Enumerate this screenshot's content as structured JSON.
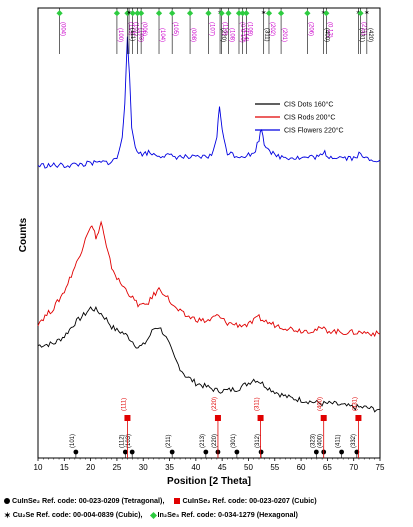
{
  "chart_data": {
    "type": "line",
    "xlabel": "Position [2 Theta]",
    "ylabel": "Counts",
    "xlim": [
      10,
      75
    ],
    "xticks": [
      "10",
      "15",
      "20",
      "25",
      "30",
      "35",
      "40",
      "45",
      "50",
      "55",
      "60",
      "65",
      "70",
      "75"
    ],
    "grid": false,
    "legend_position": "right",
    "series": [
      {
        "name": "CIS Dots 160°C",
        "color": "#000000",
        "points": [
          [
            10,
            0.6
          ],
          [
            13,
            0.61
          ],
          [
            15,
            0.65
          ],
          [
            17,
            0.72
          ],
          [
            19,
            0.77
          ],
          [
            20,
            0.8
          ],
          [
            21,
            0.79
          ],
          [
            22,
            0.77
          ],
          [
            23,
            0.74
          ],
          [
            24,
            0.7
          ],
          [
            25,
            0.68
          ],
          [
            26,
            0.67
          ],
          [
            27,
            0.65
          ],
          [
            28,
            0.62
          ],
          [
            29,
            0.59
          ],
          [
            30,
            0.6
          ],
          [
            31,
            0.64
          ],
          [
            32,
            0.69
          ],
          [
            33,
            0.7
          ],
          [
            34,
            0.66
          ],
          [
            35,
            0.6
          ],
          [
            36,
            0.53
          ],
          [
            37,
            0.48
          ],
          [
            38,
            0.44
          ],
          [
            40,
            0.4
          ],
          [
            42,
            0.38
          ],
          [
            44,
            0.36
          ],
          [
            46,
            0.36
          ],
          [
            48,
            0.37
          ],
          [
            50,
            0.4
          ],
          [
            51,
            0.42
          ],
          [
            52,
            0.41
          ],
          [
            54,
            0.37
          ],
          [
            56,
            0.34
          ],
          [
            58,
            0.32
          ],
          [
            60,
            0.31
          ],
          [
            62,
            0.3
          ],
          [
            64,
            0.29
          ],
          [
            66,
            0.29
          ],
          [
            68,
            0.28
          ],
          [
            70,
            0.27
          ],
          [
            72,
            0.27
          ],
          [
            74,
            0.26
          ],
          [
            75,
            0.26
          ]
        ]
      },
      {
        "name": "CIS Rods 200°C",
        "color": "#e00000",
        "points": [
          [
            10,
            0.72
          ],
          [
            13,
            0.8
          ],
          [
            15,
            0.89
          ],
          [
            17,
            1.02
          ],
          [
            18,
            1.08
          ],
          [
            19,
            1.18
          ],
          [
            20,
            1.24
          ],
          [
            20.5,
            1.22
          ],
          [
            21,
            1.18
          ],
          [
            21.5,
            1.2
          ],
          [
            22,
            1.26
          ],
          [
            22.5,
            1.19
          ],
          [
            23,
            1.12
          ],
          [
            24,
            1.02
          ],
          [
            25,
            0.96
          ],
          [
            26,
            0.92
          ],
          [
            27,
            0.89
          ],
          [
            28,
            0.85
          ],
          [
            29,
            0.82
          ],
          [
            30,
            0.81
          ],
          [
            31,
            0.83
          ],
          [
            32,
            0.87
          ],
          [
            33,
            0.9
          ],
          [
            34,
            0.88
          ],
          [
            35,
            0.84
          ],
          [
            36,
            0.8
          ],
          [
            38,
            0.76
          ],
          [
            40,
            0.74
          ],
          [
            42,
            0.73
          ],
          [
            43,
            0.74
          ],
          [
            44,
            0.76
          ],
          [
            45,
            0.74
          ],
          [
            46,
            0.72
          ],
          [
            48,
            0.71
          ],
          [
            50,
            0.71
          ],
          [
            51,
            0.73
          ],
          [
            52,
            0.75
          ],
          [
            53,
            0.73
          ],
          [
            55,
            0.71
          ],
          [
            58,
            0.69
          ],
          [
            60,
            0.68
          ],
          [
            62,
            0.68
          ],
          [
            64,
            0.69
          ],
          [
            65,
            0.68
          ],
          [
            68,
            0.67
          ],
          [
            70,
            0.67
          ],
          [
            72,
            0.67
          ],
          [
            75,
            0.66
          ]
        ]
      },
      {
        "name": "CIS Flowers 220°C",
        "color": "#0000e0",
        "points": [
          [
            10,
            1.56
          ],
          [
            15,
            1.56
          ],
          [
            20,
            1.57
          ],
          [
            24,
            1.58
          ],
          [
            25,
            1.6
          ],
          [
            26,
            1.7
          ],
          [
            26.5,
            1.9
          ],
          [
            27,
            2.26
          ],
          [
            27.4,
            2.02
          ],
          [
            27.8,
            1.76
          ],
          [
            28.5,
            1.66
          ],
          [
            29.5,
            1.62
          ],
          [
            31,
            1.63
          ],
          [
            32,
            1.62
          ],
          [
            35,
            1.61
          ],
          [
            40,
            1.6
          ],
          [
            43,
            1.61
          ],
          [
            44,
            1.72
          ],
          [
            44.5,
            1.88
          ],
          [
            45,
            1.74
          ],
          [
            46,
            1.63
          ],
          [
            48,
            1.61
          ],
          [
            51,
            1.62
          ],
          [
            52,
            1.7
          ],
          [
            52.5,
            1.76
          ],
          [
            53,
            1.68
          ],
          [
            55,
            1.61
          ],
          [
            60,
            1.6
          ],
          [
            64,
            1.61
          ],
          [
            64.5,
            1.63
          ],
          [
            65,
            1.61
          ],
          [
            70,
            1.6
          ],
          [
            71,
            1.62
          ],
          [
            72,
            1.6
          ],
          [
            75,
            1.59
          ]
        ]
      }
    ],
    "reference_top": [
      {
        "hkl": "(004)",
        "x": 14.1,
        "marker": "diamond"
      },
      {
        "hkl": "(100)",
        "x": 25.0,
        "marker": "diamond"
      },
      {
        "hkl": "(113)",
        "x": 27.0,
        "marker": "diamond"
      },
      {
        "hkl": "(111)",
        "x": 27.3,
        "marker": "star"
      },
      {
        "hkl": "(101)",
        "x": 28.0,
        "marker": "diamond"
      },
      {
        "hkl": "(103)",
        "x": 28.9,
        "marker": "diamond"
      },
      {
        "hkl": "(006)",
        "x": 29.6,
        "marker": "diamond"
      },
      {
        "hkl": "(104)",
        "x": 33.0,
        "marker": "diamond"
      },
      {
        "hkl": "(105)",
        "x": 35.5,
        "marker": "diamond"
      },
      {
        "hkl": "(008)",
        "x": 38.9,
        "marker": "diamond"
      },
      {
        "hkl": "(107)",
        "x": 42.4,
        "marker": "diamond"
      },
      {
        "hkl": "(220)",
        "x": 44.6,
        "marker": "star"
      },
      {
        "hkl": "(110)",
        "x": 44.9,
        "marker": "diamond"
      },
      {
        "hkl": "(108)",
        "x": 46.2,
        "marker": "diamond"
      },
      {
        "hkl": "(0 0 10)",
        "x": 48.2,
        "marker": "diamond"
      },
      {
        "hkl": "(114)",
        "x": 48.9,
        "marker": "diamond"
      },
      {
        "hkl": "(109)",
        "x": 49.6,
        "marker": "diamond"
      },
      {
        "hkl": "(311)",
        "x": 52.9,
        "marker": "star"
      },
      {
        "hkl": "(202)",
        "x": 53.9,
        "marker": "diamond"
      },
      {
        "hkl": "(201)",
        "x": 56.2,
        "marker": "diamond"
      },
      {
        "hkl": "(206)",
        "x": 61.2,
        "marker": "diamond"
      },
      {
        "hkl": "(400)",
        "x": 64.3,
        "marker": "star"
      },
      {
        "hkl": "(0 12)",
        "x": 64.8,
        "marker": "diamond"
      },
      {
        "hkl": "(331)",
        "x": 70.9,
        "marker": "star"
      },
      {
        "hkl": "(211)",
        "x": 71.3,
        "marker": "diamond"
      },
      {
        "hkl": "(420)",
        "x": 72.5,
        "marker": "star"
      }
    ],
    "reference_bottom_tetragonal": [
      {
        "hkl": "(101)",
        "x": 17.2
      },
      {
        "hkl": "(112)",
        "x": 26.6
      },
      {
        "hkl": "(103)",
        "x": 27.9
      },
      {
        "hkl": "(211)",
        "x": 35.5
      },
      {
        "hkl": "(213)",
        "x": 41.9
      },
      {
        "hkl": "(220)",
        "x": 44.2
      },
      {
        "hkl": "(301)",
        "x": 47.8
      },
      {
        "hkl": "(312)",
        "x": 52.4
      },
      {
        "hkl": "(323)",
        "x": 62.9
      },
      {
        "hkl": "(400)",
        "x": 64.3
      },
      {
        "hkl": "(411)",
        "x": 67.7
      },
      {
        "hkl": "(332)",
        "x": 70.6
      }
    ],
    "reference_bottom_cubic": [
      {
        "hkl": "(111)",
        "x": 27.0
      },
      {
        "hkl": "(220)",
        "x": 44.2
      },
      {
        "hkl": "(311)",
        "x": 52.3
      },
      {
        "hkl": "(400)",
        "x": 64.3
      },
      {
        "hkl": "(331)",
        "x": 70.9
      }
    ]
  },
  "captions": {
    "row1_part1": "CuInSe₂ Ref. code: 00-023-0209  (Tetragonal),",
    "row1_part2": "CuInSe₂ Ref. code: 00-023-0207  (Cubic)",
    "row2_part1": "Cu₂Se Ref. code: 00-004-0839 (Cubic),",
    "row2_part2": "In₂Se₃ Ref. code: 0-034-1279 (Hexagonal)"
  },
  "colors": {
    "magenta": "#cc00cc",
    "green": "#2ecc40",
    "red": "#e00000",
    "blue": "#0000e0",
    "black": "#000000"
  }
}
